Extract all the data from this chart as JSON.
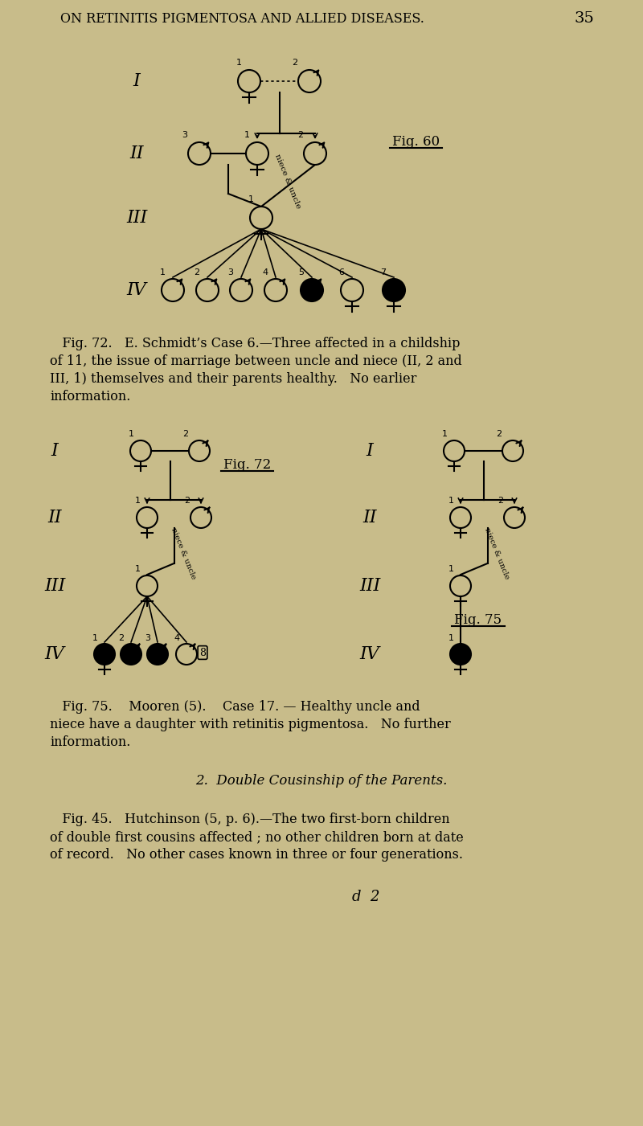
{
  "bg_color": "#c8bc8a",
  "text_color": "#1a1a1a",
  "page_title": "ON RETINITIS PIGMENTOSA AND ALLIED DISEASES.",
  "page_number": "35",
  "fig72_caption_lines": [
    "   Fig. 72.   E. Schmidt’s Case 6.—Three affected in a childship",
    "of 11, the issue of marriage between uncle and niece (II, 2 and",
    "III, 1) themselves and their parents healthy.   No earlier",
    "information."
  ],
  "fig75_caption_lines": [
    "   Fig. 75.    Mooren (5).    Case 17. — Healthy uncle and",
    "niece have a daughter with retinitis pigmentosa.   No further",
    "information."
  ],
  "section_heading": "2.  Double Cousinship of the Parents.",
  "fig45_caption_lines": [
    "   Fig. 45.   Hutchinson (5, p. 6).—The two first-born children",
    "of double first cousins affected ; no other children born at date",
    "of record.   No other cases known in three or four generations."
  ],
  "d2_text": "d  2"
}
